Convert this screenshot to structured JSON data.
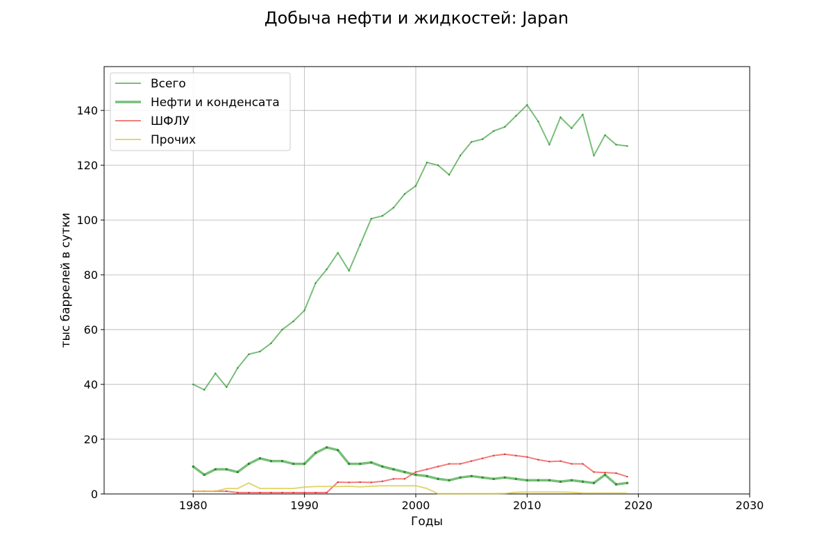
{
  "chart_data": {
    "type": "line",
    "title": "Добыча нефти и жидкостей: Japan",
    "xlabel": "Годы",
    "ylabel": "тыс баррелей в сутки",
    "xlim": [
      1972,
      2030
    ],
    "ylim": [
      0,
      156
    ],
    "xticks": [
      1980,
      1990,
      2000,
      2010,
      2020,
      2030
    ],
    "yticks": [
      0,
      20,
      40,
      60,
      80,
      100,
      120,
      140
    ],
    "grid": true,
    "legend_position": "top-left",
    "x": [
      1980,
      1981,
      1982,
      1983,
      1984,
      1985,
      1986,
      1987,
      1988,
      1989,
      1990,
      1991,
      1992,
      1993,
      1994,
      1995,
      1996,
      1997,
      1998,
      1999,
      2000,
      2001,
      2002,
      2003,
      2004,
      2005,
      2006,
      2007,
      2008,
      2009,
      2010,
      2011,
      2012,
      2013,
      2014,
      2015,
      2016,
      2017,
      2018,
      2019
    ],
    "series": [
      {
        "name": "Всего",
        "color": "#4aa84a",
        "width": 2,
        "marker": 2,
        "values": [
          40,
          38,
          44,
          39,
          46,
          51,
          52,
          55,
          60,
          63,
          67,
          77,
          82,
          88,
          81.5,
          91,
          100.5,
          101.5,
          104.5,
          109.5,
          112.5,
          121,
          120,
          116.5,
          123.5,
          128.5,
          129.5,
          132.5,
          134,
          138,
          142,
          136,
          127.5,
          137.5,
          133.5,
          138.5,
          123.5,
          131,
          127.5,
          127
        ]
      },
      {
        "name": "Нефти и конденсата",
        "color": "#4aa84a",
        "width": 3.5,
        "marker": 3,
        "values": [
          10,
          7,
          9,
          9,
          8,
          11,
          13,
          12,
          12,
          11,
          11,
          15,
          17,
          16,
          11,
          11,
          11.5,
          10,
          9,
          8,
          7,
          6.5,
          5.5,
          5,
          6,
          6.5,
          6,
          5.5,
          6,
          5.5,
          5,
          5,
          5,
          4.5,
          5,
          4.5,
          4,
          7,
          3.5,
          4
        ]
      },
      {
        "name": "ШФЛУ",
        "color": "#f05050",
        "width": 2,
        "marker": 2,
        "values": [
          1,
          1,
          1,
          1,
          0.5,
          0.5,
          0.5,
          0.5,
          0.5,
          0.5,
          0.5,
          0.5,
          0.5,
          4.3,
          4.2,
          4.3,
          4.2,
          4.6,
          5.5,
          5.5,
          8,
          9,
          10,
          11,
          11,
          12,
          13,
          14,
          14.5,
          14,
          13.5,
          12.5,
          11.8,
          12,
          11,
          11,
          8,
          7.8,
          7.6,
          6.3
        ]
      },
      {
        "name": "Прочих",
        "color": "#d8c840",
        "width": 2,
        "marker": 0,
        "values": [
          1,
          1,
          1,
          2,
          2,
          4,
          2,
          2,
          2,
          2,
          2.5,
          2.7,
          2.7,
          2.7,
          2.8,
          2.6,
          2.8,
          3,
          3,
          3,
          3,
          2,
          0.1,
          0.1,
          0.1,
          0.1,
          0.1,
          0.1,
          0.2,
          0.6,
          0.7,
          0.7,
          0.7,
          0.7,
          0.6,
          0.3,
          0.3,
          0.3,
          0.3,
          0.3
        ]
      }
    ]
  }
}
